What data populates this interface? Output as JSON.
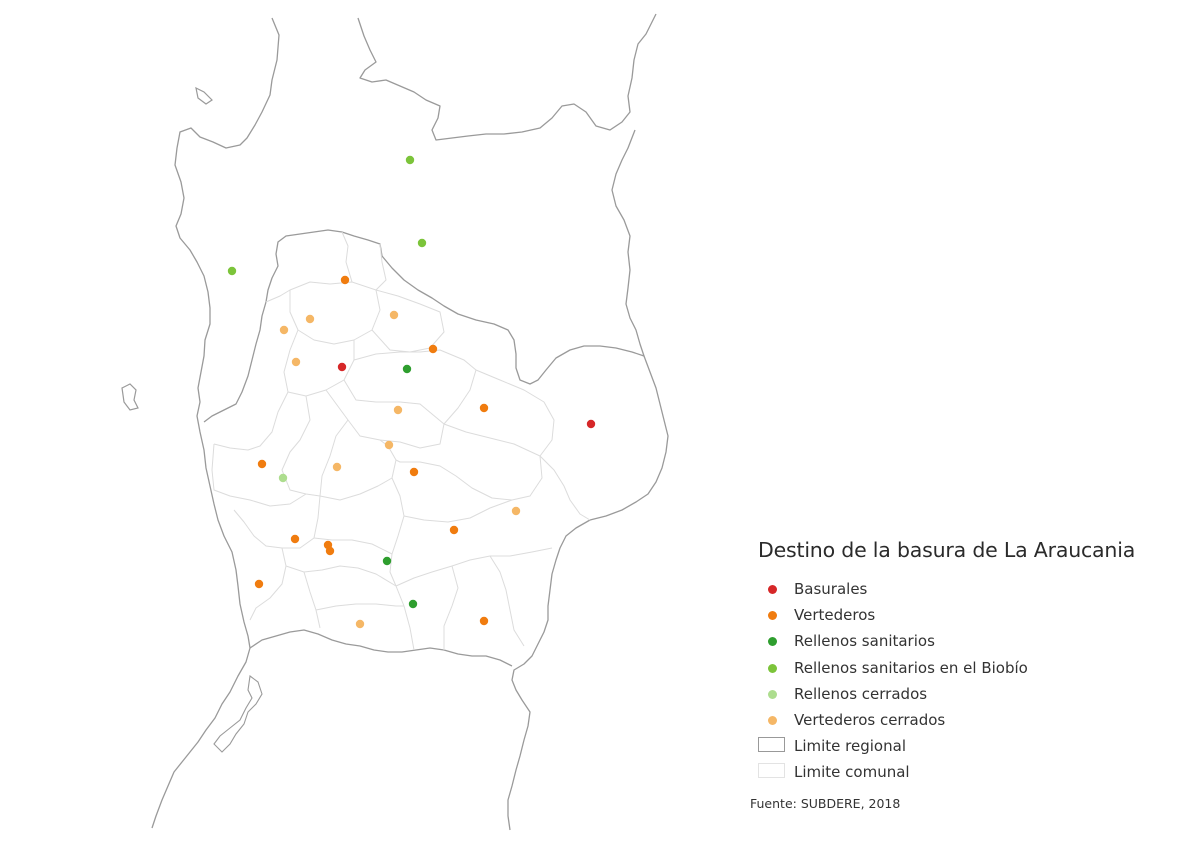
{
  "legend": {
    "title": "Destino de la basura de La Araucania",
    "items": [
      {
        "label": "Basurales",
        "color": "#d62728",
        "kind": "dot"
      },
      {
        "label": "Vertederos",
        "color": "#f07c0f",
        "kind": "dot"
      },
      {
        "label": "Rellenos sanitarios",
        "color": "#2e9e2e",
        "kind": "dot"
      },
      {
        "label": "Rellenos sanitarios en el Biobío",
        "color": "#7cc43a",
        "kind": "dot"
      },
      {
        "label": "Rellenos cerrados",
        "color": "#addd8e",
        "kind": "dot"
      },
      {
        "label": "Vertederos cerrados",
        "color": "#f5b766",
        "kind": "dot"
      },
      {
        "label": "Limite regional",
        "color": "#999999",
        "kind": "box"
      },
      {
        "label": "Limite comunal",
        "color": "#e3e3e3",
        "kind": "box"
      }
    ]
  },
  "source": "Fuente: SUBDERE, 2018",
  "colors": {
    "regional_border": "#999999",
    "communal_border": "#dcdcdc",
    "background": "#ffffff"
  }
}
